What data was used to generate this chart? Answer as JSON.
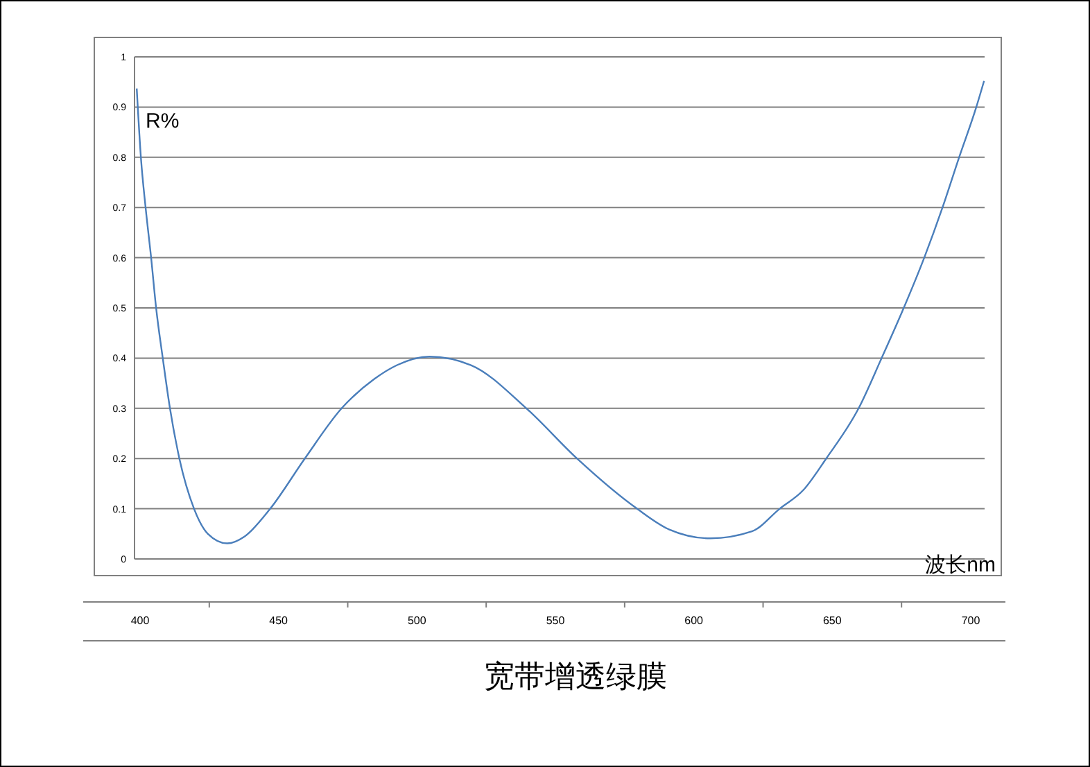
{
  "chart_data": {
    "type": "line",
    "title": "宽带增透绿膜",
    "xlabel": "波长nm",
    "ylabel": "R%",
    "x": [
      398.8,
      400.3,
      402,
      404,
      405.8,
      408.2,
      410.8,
      414.2,
      419.5,
      424.5,
      431.5,
      437.8,
      447,
      459.5,
      472.8,
      484.5,
      492.8,
      504.5,
      519.5,
      539.5,
      557.8,
      579.5,
      591,
      606,
      621,
      631,
      639.5,
      647.8,
      659.5,
      667.8,
      675.8,
      683.2,
      689.8,
      695.8,
      702,
      704.8
    ],
    "series": [
      {
        "color": "#4a7ebb",
        "values": [
          0.937,
          0.8,
          0.7,
          0.6,
          0.5,
          0.4,
          0.3,
          0.2,
          0.1,
          0.05,
          0.031,
          0.045,
          0.1,
          0.2,
          0.3,
          0.358,
          0.386,
          0.403,
          0.386,
          0.3,
          0.2,
          0.1,
          0.059,
          0.041,
          0.055,
          0.1,
          0.137,
          0.2,
          0.3,
          0.4,
          0.5,
          0.6,
          0.7,
          0.8,
          0.9,
          0.952
        ]
      }
    ],
    "xlim": [
      398,
      705
    ],
    "xticks": [
      400,
      450,
      500,
      550,
      600,
      650,
      700
    ],
    "ylim": [
      0,
      1
    ],
    "yticks": [
      0,
      0.1,
      0.2,
      0.3,
      0.4,
      0.5,
      0.6,
      0.7,
      0.8,
      0.9,
      1
    ],
    "grid": "y",
    "marker": "none",
    "line_style": "solid"
  }
}
